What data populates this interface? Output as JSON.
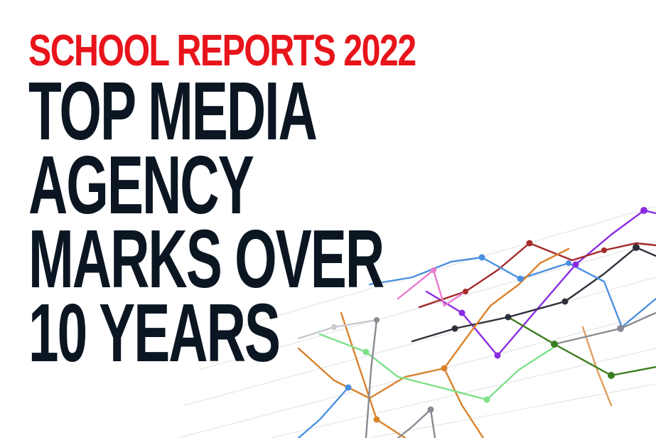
{
  "header": {
    "kicker": "SCHOOL REPORTS 2022",
    "title_lines": [
      "TOP MEDIA",
      "AGENCY",
      "MARKS OVER",
      "10 YEARS"
    ]
  },
  "colors": {
    "kicker": "#e8141b",
    "title": "#0b1622",
    "background": "#ffffff",
    "grid": "#e3e3e3"
  },
  "decoration": {
    "series_colors": [
      "#8a2be2",
      "#d9822b",
      "#a52a2a",
      "#2f2f3a",
      "#4a90e2",
      "#3b7d1f",
      "#7ee08a",
      "#e87ad0",
      "#8a8a94",
      "#e0a060"
    ]
  }
}
